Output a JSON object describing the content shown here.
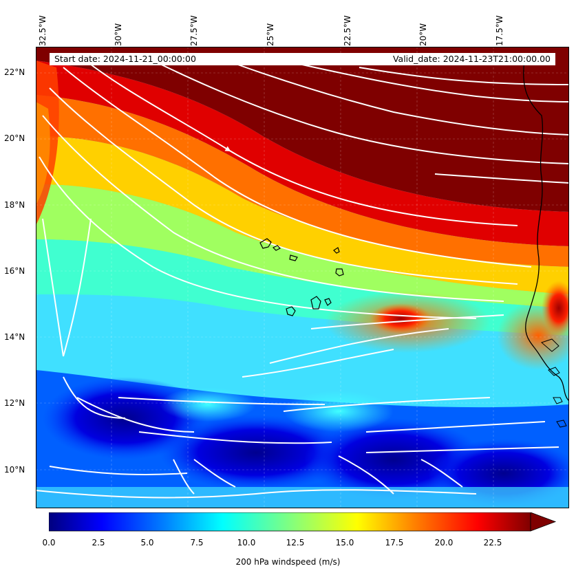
{
  "map": {
    "variable": "200 hPa windspeed (m/s)",
    "start_date_text": "Start date: 2024-11-21_00:00:00",
    "valid_date_text": "Valid_date: 2024-11-23T21:00:00.00",
    "longitude_ticks": [
      "32.5°W",
      "30°W",
      "27.5°W",
      "25°W",
      "22.5°W",
      "20°W",
      "17.5°W"
    ],
    "latitude_ticks": [
      "22°N",
      "20°N",
      "18°N",
      "16°N",
      "14°N",
      "12°N",
      "10°N"
    ],
    "lon_range": [
      -32.5,
      -15.0
    ],
    "lat_range": [
      8.9,
      22.8
    ],
    "features": [
      "Cape Verde islands",
      "West African coastline"
    ]
  },
  "colorbar": {
    "ticks": [
      "0.0",
      "2.5",
      "5.0",
      "7.5",
      "10.0",
      "12.5",
      "15.0",
      "17.5",
      "20.0",
      "22.5"
    ],
    "min": 0,
    "max": 25,
    "extend": "max",
    "colormap": [
      "#00007f",
      "#0000ff",
      "#0080ff",
      "#00ffff",
      "#80ff80",
      "#ffff00",
      "#ff8000",
      "#ff0000",
      "#7f0000"
    ]
  }
}
